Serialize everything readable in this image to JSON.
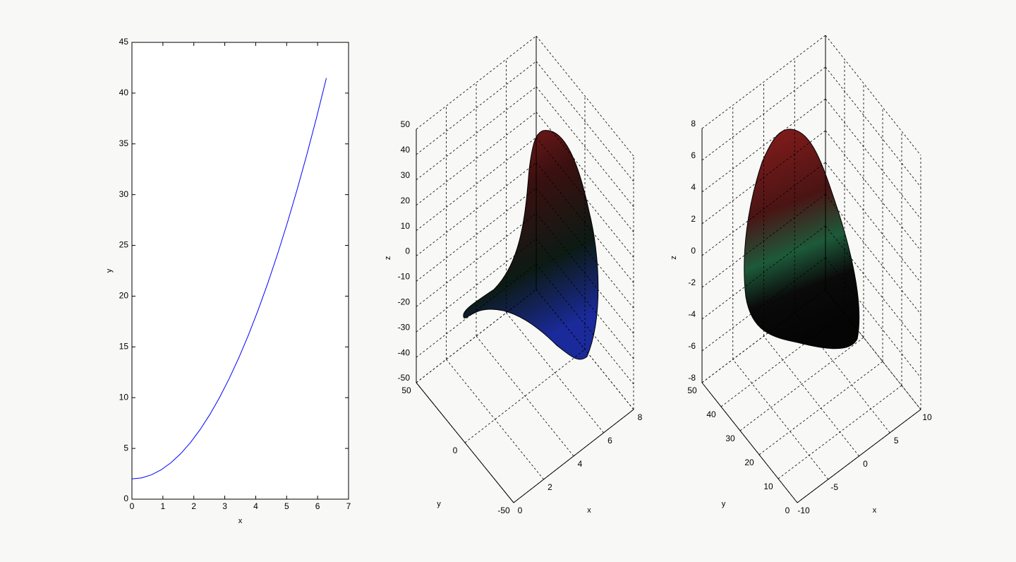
{
  "chart_data": [
    {
      "type": "line",
      "xlabel": "x",
      "ylabel": "y",
      "x": [
        0,
        0.314,
        0.628,
        0.942,
        1.257,
        1.571,
        1.885,
        2.199,
        2.513,
        2.827,
        3.142,
        3.456,
        3.77,
        4.084,
        4.398,
        4.712,
        5.027,
        5.341,
        5.655,
        5.969,
        6.283
      ],
      "series": [
        {
          "color": "#0000ff",
          "values": [
            2,
            2.099,
            2.394,
            2.887,
            3.58,
            4.467,
            5.553,
            6.836,
            8.315,
            9.992,
            11.872,
            13.944,
            16.213,
            18.679,
            21.342,
            24.203,
            27.271,
            30.526,
            33.979,
            37.629,
            41.476
          ]
        }
      ],
      "xlim": [
        0,
        7
      ],
      "ylim": [
        0,
        45
      ],
      "xticks": [
        0,
        1,
        2,
        3,
        4,
        5,
        6,
        7
      ],
      "yticks": [
        0,
        5,
        10,
        15,
        20,
        25,
        30,
        35,
        40,
        45
      ]
    },
    {
      "type": "surface3d",
      "xlabel": "x",
      "ylabel": "y",
      "zlabel": "z",
      "xlim": [
        0,
        8
      ],
      "ylim": [
        -50,
        50
      ],
      "zlim": [
        -50,
        50
      ],
      "xticks": [
        0,
        2,
        4,
        6,
        8
      ],
      "yticks": [
        -50,
        0,
        50
      ],
      "zticks": [
        -50,
        -40,
        -30,
        -20,
        -10,
        0,
        10,
        20,
        30,
        40,
        50
      ],
      "grid": true
    },
    {
      "type": "surface3d",
      "xlabel": "x",
      "ylabel": "y",
      "zlabel": "z",
      "xlim": [
        -10,
        10
      ],
      "ylim": [
        0,
        50
      ],
      "zlim": [
        -8,
        8
      ],
      "xticks": [
        -10,
        -5,
        0,
        5,
        10
      ],
      "yticks": [
        0,
        10,
        20,
        30,
        40,
        50
      ],
      "zticks": [
        -8,
        -6,
        -4,
        -2,
        0,
        2,
        4,
        6,
        8
      ],
      "grid": true
    }
  ]
}
